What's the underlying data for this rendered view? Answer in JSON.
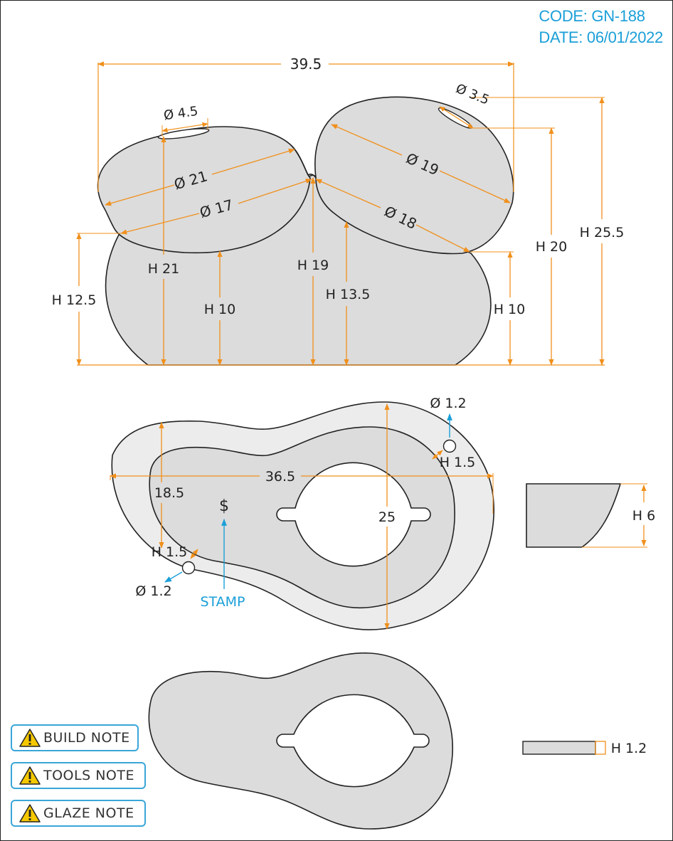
{
  "header": {
    "code": "CODE: GN-188",
    "date": "DATE: 06/01/2022"
  },
  "colors": {
    "dimension": "#f0901c",
    "annotation": "#1a9fd8",
    "fill_main": "#dcdcdc",
    "fill_light": "#ececec",
    "outline": "#222222"
  },
  "top_view": {
    "overall_width": "39.5",
    "diameters": [
      "Ø 4.5",
      "Ø 21",
      "Ø 17",
      "Ø 3.5",
      "Ø 19",
      "Ø 18"
    ],
    "heights": [
      "H 12.5",
      "H 21",
      "H 10",
      "H 19",
      "H 13.5",
      "H 10",
      "H 20",
      "H 25.5"
    ]
  },
  "plate_view": {
    "width": "36.5",
    "depth": "25",
    "inner": "18.5",
    "hole_right": "Ø 1.2",
    "hole_right_h": "H 1.5",
    "hole_left": "Ø 1.2",
    "hole_left_h": "H 1.5",
    "stamp_symbol": "$",
    "stamp_label": "STAMP"
  },
  "side_view": {
    "height": "H 6"
  },
  "bottom_view": {
    "thickness": "H 1.2"
  },
  "notes": [
    {
      "label": "BUILD NOTE",
      "icon": "warning-icon"
    },
    {
      "label": "TOOLS NOTE",
      "icon": "warning-icon"
    },
    {
      "label": "GLAZE NOTE",
      "icon": "warning-icon"
    }
  ]
}
